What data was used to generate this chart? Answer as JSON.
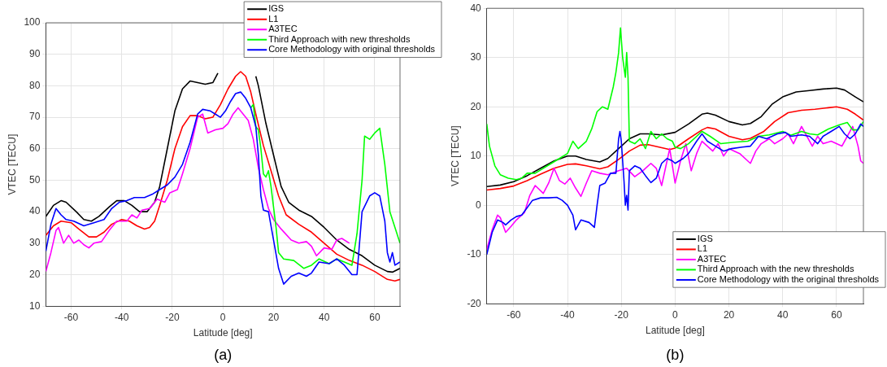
{
  "chart_data": [
    {
      "type": "line",
      "xlabel": "Latitude [deg]",
      "ylabel": "VTEC [TECU]",
      "annotations": [
        "(a)"
      ],
      "xlim": [
        -70,
        70
      ],
      "xticks": [
        -60,
        -40,
        -20,
        0,
        20,
        40,
        60
      ],
      "ylim": [
        10,
        100
      ],
      "yticks": [
        10,
        20,
        30,
        40,
        50,
        60,
        70,
        80,
        90,
        100
      ],
      "grid": true,
      "legend": "top right",
      "line_style": "solid",
      "series": [
        {
          "name": "IGS",
          "color": "#000000",
          "x": [
            -70,
            -67,
            -64,
            -62,
            -58,
            -55,
            -52,
            -49,
            -45,
            -42,
            -39,
            -36,
            -33,
            -30,
            -27,
            -25,
            -22,
            -19,
            -16,
            -13,
            -10,
            -7,
            -4,
            -2,
            0,
            3,
            6,
            10,
            13,
            14,
            17,
            20,
            23,
            26,
            30,
            35,
            40,
            45,
            50,
            55,
            60,
            65,
            67,
            70
          ],
          "values": [
            38.5,
            42,
            43.5,
            43,
            40,
            37.5,
            37,
            38.5,
            41.5,
            43.5,
            43.5,
            42,
            40,
            40,
            43,
            48,
            60,
            72,
            79,
            81.5,
            81,
            80.5,
            81,
            84,
            null,
            null,
            null,
            null,
            83,
            80,
            68,
            58,
            48,
            43,
            40.5,
            38.5,
            35,
            31,
            28,
            26,
            23,
            21,
            20.8,
            22
          ]
        },
        {
          "name": "L1",
          "color": "#ff0000",
          "x": [
            -70,
            -67,
            -64,
            -60,
            -57,
            -53,
            -50,
            -47,
            -44,
            -40,
            -37,
            -34,
            -31,
            -29,
            -27,
            -25,
            -22,
            -19,
            -16,
            -13,
            -10,
            -7,
            -4,
            -1,
            2,
            5,
            7,
            9,
            11,
            13,
            16,
            19,
            22,
            25,
            30,
            35,
            40,
            45,
            50,
            55,
            60,
            65,
            68,
            70
          ],
          "values": [
            32.5,
            35.5,
            37,
            36.5,
            34.5,
            32,
            32,
            33.5,
            36,
            37.5,
            37,
            35.5,
            34.5,
            35,
            37,
            42,
            50,
            60,
            67,
            70.5,
            70.5,
            69.5,
            70,
            74,
            79,
            83,
            84.5,
            83,
            78,
            71,
            61,
            53,
            45,
            39,
            36,
            33.5,
            30,
            26.5,
            24.5,
            23,
            21,
            18.5,
            18,
            18.5
          ]
        },
        {
          "name": "A3TEC",
          "color": "#ff00ff",
          "x": [
            -70,
            -68,
            -66,
            -65,
            -63,
            -61,
            -59,
            -57,
            -55,
            -53,
            -51,
            -48,
            -45,
            -42,
            -38,
            -36,
            -34,
            -32,
            -29,
            -26,
            -23,
            -21,
            -18,
            -16,
            -13,
            -10,
            -8,
            -6,
            -3,
            0,
            2,
            4,
            6,
            8,
            10,
            12,
            14,
            16,
            18,
            20,
            23,
            27,
            30,
            33,
            35,
            37,
            40,
            43,
            45,
            47,
            50
          ],
          "values": [
            21,
            27,
            34,
            35,
            30,
            32.5,
            30,
            31,
            29.5,
            28.5,
            30,
            30.5,
            34,
            37,
            37,
            39,
            38,
            40.5,
            41,
            44,
            43,
            46,
            47,
            52,
            60,
            70,
            71,
            65,
            66,
            66.5,
            68,
            71,
            73,
            71,
            69,
            63,
            54,
            47,
            41,
            37.5,
            34.5,
            31,
            30,
            30.5,
            29,
            26,
            28.5,
            28,
            31,
            31.5,
            30
          ]
        },
        {
          "name": "Third Approach with new thresholds",
          "color": "#00ff00",
          "x": [
            11,
            12,
            13,
            14,
            15,
            16,
            17,
            18,
            19,
            21,
            22,
            24,
            28,
            32,
            35,
            38,
            42,
            45,
            48,
            51,
            53,
            55,
            56,
            58,
            60,
            62,
            64,
            66,
            68,
            70
          ],
          "values": [
            73,
            74,
            67,
            66,
            60,
            52,
            51,
            53,
            48,
            35,
            27,
            25,
            24.5,
            22,
            23,
            25,
            23.5,
            25,
            24,
            23,
            33,
            50,
            64,
            63,
            65,
            66.5,
            55,
            40,
            35,
            30
          ]
        },
        {
          "name": "Core Methodology with original thresholds",
          "color": "#0000ff",
          "x": [
            -70,
            -68,
            -66,
            -64,
            -62,
            -59,
            -55,
            -51,
            -47,
            -44,
            -41,
            -38,
            -35,
            -31,
            -28,
            -25,
            -22,
            -19,
            -16,
            -13,
            -10,
            -8,
            -5,
            -3,
            -1,
            1,
            3,
            5,
            7,
            9,
            11,
            13,
            14,
            15,
            16,
            18,
            20,
            22,
            24,
            27,
            30,
            33,
            35,
            38,
            42,
            45,
            48,
            51,
            53,
            55,
            58,
            60,
            62,
            64,
            65,
            66,
            67,
            68,
            70
          ],
          "values": [
            27.5,
            36,
            41,
            39,
            37.5,
            37,
            35.5,
            36.5,
            37.5,
            41,
            43,
            43.5,
            44.5,
            44.5,
            45.5,
            47,
            48.5,
            51,
            55,
            62,
            71,
            72.5,
            72,
            71,
            70,
            72,
            75,
            77.5,
            78,
            76,
            73,
            67,
            58,
            45,
            40.5,
            40,
            31,
            22,
            17,
            19.5,
            20.5,
            19.5,
            20.5,
            24,
            23.5,
            25,
            23,
            20,
            20,
            40,
            45,
            46,
            45,
            37,
            27,
            24,
            27,
            23,
            24
          ]
        }
      ]
    },
    {
      "type": "line",
      "xlabel": "Latitude [deg]",
      "ylabel": "VTEC [TECU]",
      "annotations": [
        "(b)"
      ],
      "xlim": [
        -70,
        70
      ],
      "xticks": [
        -60,
        -40,
        -20,
        0,
        20,
        40,
        60
      ],
      "ylim": [
        -20,
        40
      ],
      "yticks": [
        -20,
        -10,
        0,
        10,
        20,
        30,
        40
      ],
      "grid": true,
      "legend": "bottom right",
      "line_style": "solid",
      "series": [
        {
          "name": "IGS",
          "color": "#000000",
          "x": [
            -70,
            -65,
            -60,
            -55,
            -50,
            -45,
            -40,
            -37,
            -33,
            -28,
            -25,
            -21,
            -17,
            -13,
            -10,
            -5,
            0,
            5,
            10,
            12,
            15,
            20,
            25,
            28,
            32,
            36,
            40,
            45,
            50,
            55,
            60,
            63,
            67,
            70
          ],
          "values": [
            3.8,
            4.1,
            4.8,
            6,
            7.5,
            9,
            10,
            10,
            9.3,
            8.8,
            9.5,
            11.5,
            13.5,
            14.5,
            14.5,
            14.3,
            14.8,
            16.5,
            18.5,
            18.7,
            18.3,
            17,
            16.3,
            16.6,
            18,
            20.5,
            22,
            23,
            23.3,
            23.6,
            23.8,
            23.4,
            22,
            21
          ]
        },
        {
          "name": "L1",
          "color": "#ff0000",
          "x": [
            -70,
            -65,
            -60,
            -55,
            -50,
            -45,
            -40,
            -37,
            -33,
            -28,
            -25,
            -21,
            -17,
            -13,
            -10,
            -5,
            -2,
            0,
            5,
            10,
            12,
            15,
            20,
            25,
            28,
            33,
            37,
            42,
            47,
            52,
            57,
            60,
            64,
            67,
            70
          ],
          "values": [
            3.1,
            3.4,
            3.9,
            5,
            6.3,
            7.5,
            8.3,
            8.4,
            8,
            7.4,
            7.8,
            9.3,
            11,
            12.2,
            12.3,
            11.7,
            11.3,
            11.6,
            13.5,
            15.3,
            15.8,
            15.5,
            14,
            13.3,
            13.6,
            15,
            17,
            18.8,
            19.3,
            19.5,
            19.8,
            20,
            19.5,
            18.5,
            17.3
          ]
        },
        {
          "name": "A3TEC",
          "color": "#ff00ff",
          "x": [
            -70,
            -68,
            -66,
            -65,
            -63,
            -61,
            -59,
            -56,
            -54,
            -52,
            -49,
            -47,
            -45,
            -43,
            -41,
            -39,
            -37,
            -35,
            -33,
            -31,
            -28,
            -25,
            -21,
            -18,
            -15,
            -12,
            -9,
            -7,
            -5,
            -2,
            0,
            2,
            4,
            6,
            8,
            10,
            12,
            14,
            16,
            18,
            20,
            22,
            24,
            27,
            28,
            30,
            32,
            35,
            37,
            40,
            42,
            44,
            47,
            49,
            51,
            53,
            55,
            58,
            62,
            64,
            66,
            68,
            69,
            70
          ],
          "values": [
            -9,
            -5,
            -2,
            -2.5,
            -5.5,
            -4.3,
            -3,
            -1.5,
            2,
            4,
            2.4,
            4.5,
            7.5,
            5,
            4.3,
            5.5,
            3.5,
            1.8,
            4.5,
            7,
            6.5,
            6.2,
            7,
            7.5,
            5.8,
            7,
            8.5,
            7.5,
            4,
            11.5,
            4.5,
            9,
            12.5,
            7,
            10.5,
            13,
            12,
            11,
            12.5,
            10,
            11.5,
            11,
            10.5,
            9,
            8.5,
            11,
            12.5,
            13.5,
            12.5,
            13.5,
            14.5,
            12.5,
            16,
            14,
            12,
            14,
            12.5,
            13,
            12,
            14,
            16,
            12,
            9,
            8.5
          ]
        },
        {
          "name": "Third Approach with the new thresholds",
          "color": "#00ff00",
          "x": [
            -70,
            -69,
            -67,
            -65,
            -62,
            -59,
            -57,
            -55,
            -52,
            -49,
            -46,
            -43,
            -40,
            -38,
            -36,
            -33,
            -31,
            -29,
            -27,
            -25,
            -23,
            -22,
            -21,
            -20.3,
            -19.5,
            -18.5,
            -18,
            -17.5,
            -17,
            -15,
            -13,
            -11,
            -9,
            -7,
            -5,
            -3,
            -1,
            0,
            2,
            5,
            8,
            10,
            13,
            17,
            22,
            27,
            31,
            35,
            40,
            43,
            47,
            50,
            53,
            57,
            61,
            64,
            66,
            68,
            70
          ],
          "values": [
            16.5,
            12,
            8,
            6.2,
            5.5,
            5.2,
            5.5,
            6.5,
            6.5,
            7.5,
            8.5,
            9.5,
            10.5,
            13,
            11.5,
            13,
            15.5,
            19,
            20,
            19.5,
            24,
            27,
            31,
            36,
            30,
            26,
            31,
            26,
            13,
            12.5,
            13.5,
            11.5,
            15,
            13.5,
            14.5,
            13.5,
            13,
            11.8,
            11.5,
            12.5,
            14,
            15,
            14,
            12.5,
            12.8,
            13,
            14,
            14.3,
            15,
            14.2,
            15,
            14.5,
            14.3,
            15.5,
            16.3,
            16.8,
            15.3,
            15.3,
            17
          ]
        },
        {
          "name": "Core Methodology with the original thresholds",
          "color": "#0000ff",
          "x": [
            -70,
            -68,
            -66,
            -64,
            -63,
            -61,
            -59,
            -57,
            -55,
            -53,
            -50,
            -47,
            -44,
            -42,
            -40,
            -38,
            -37,
            -35,
            -32,
            -30,
            -29,
            -28,
            -26,
            -24,
            -22,
            -21,
            -20.5,
            -20,
            -19,
            -18.5,
            -18,
            -17.5,
            -17,
            -15,
            -13,
            -11,
            -9,
            -7,
            -5,
            -3,
            -1,
            0,
            3,
            5,
            8,
            10,
            12,
            15,
            18,
            21,
            25,
            28,
            31,
            34,
            38,
            41,
            43,
            47,
            50,
            53,
            55,
            58,
            61,
            63,
            65,
            67,
            69,
            70
          ],
          "values": [
            -10,
            -5.5,
            -3,
            -3.5,
            -4,
            -3,
            -2.3,
            -2,
            -0.5,
            1,
            1.5,
            1.5,
            1.6,
            1,
            0,
            -2,
            -5,
            -3,
            -3.5,
            -4.5,
            0,
            4,
            4.5,
            6.5,
            6.5,
            13.5,
            15,
            13,
            5,
            0,
            2,
            -1,
            7,
            8,
            7.5,
            6,
            4.6,
            5.5,
            8.5,
            9.5,
            9,
            8.5,
            9.5,
            10.5,
            13,
            14.5,
            13,
            12,
            11,
            11.5,
            11.8,
            12,
            14,
            13.5,
            14.5,
            14.8,
            14,
            14.3,
            14,
            12.5,
            14,
            15,
            16,
            14.5,
            13.5,
            14.5,
            16.5,
            16
          ]
        }
      ]
    }
  ]
}
